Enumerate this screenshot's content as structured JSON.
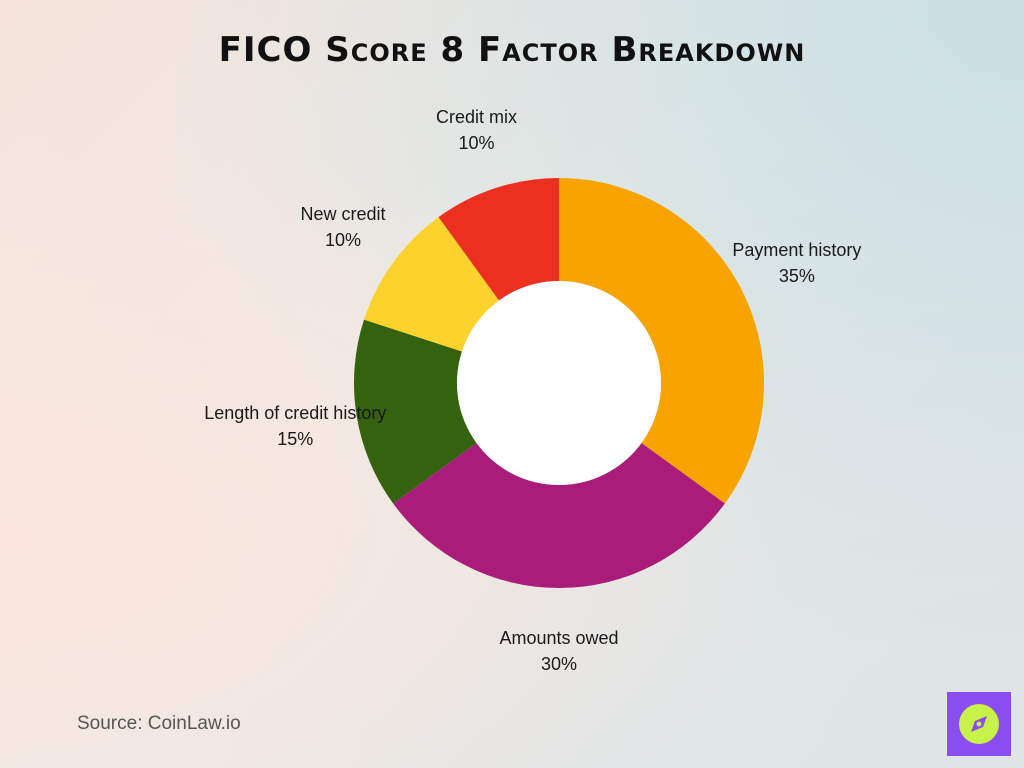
{
  "title": "FICO Score 8 Factor Breakdown",
  "source": "Source: CoinLaw.io",
  "logo_icon": "compass-icon",
  "colors": {
    "logo_bg": "#8a4df0",
    "logo_circle": "#c7f24a"
  },
  "chart_data": {
    "type": "pie",
    "variant": "donut",
    "title": "FICO Score 8 Factor Breakdown",
    "slices": [
      {
        "label": "Payment history",
        "value": 35,
        "value_label": "35%",
        "color": "#f7a400"
      },
      {
        "label": "Amounts owed",
        "value": 30,
        "value_label": "30%",
        "color": "#a91c7a"
      },
      {
        "label": "Length of credit history",
        "value": 15,
        "value_label": "15%",
        "color": "#34620e"
      },
      {
        "label": "New credit",
        "value": 10,
        "value_label": "10%",
        "color": "#fed22d"
      },
      {
        "label": "Credit mix",
        "value": 10,
        "value_label": "10%",
        "color": "#eb3020"
      }
    ],
    "legend": "none"
  }
}
